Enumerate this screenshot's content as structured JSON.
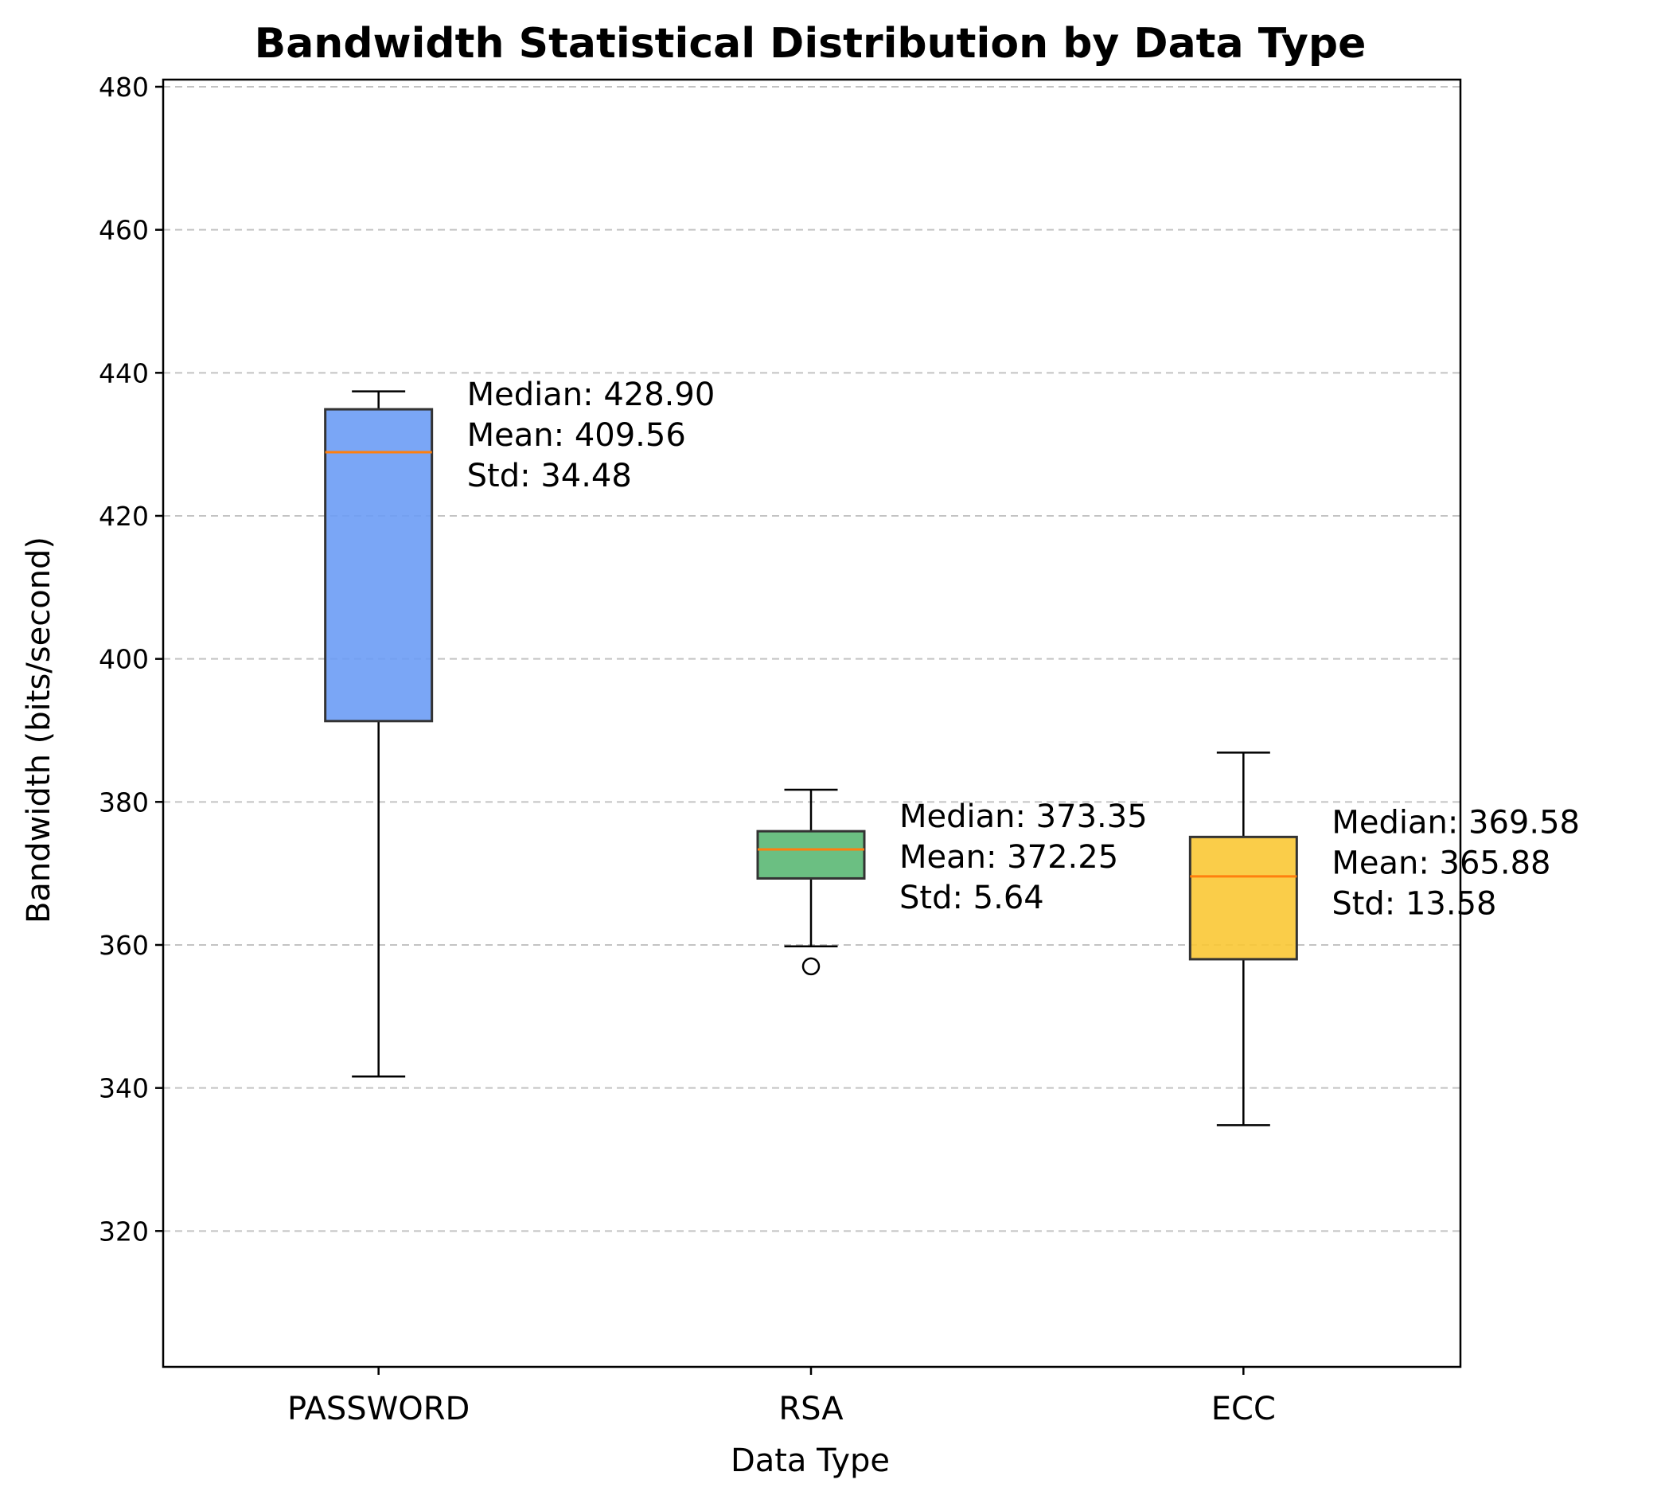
{
  "chart_data": {
    "type": "box",
    "title": "Bandwidth Statistical Distribution by Data Type",
    "xlabel": "Data Type",
    "ylabel": "Bandwidth (bits/second)",
    "ylim": [
      301,
      481
    ],
    "yticks": [
      320,
      340,
      360,
      380,
      400,
      420,
      440,
      460,
      480
    ],
    "grid": "y, dashed",
    "categories": [
      "PASSWORD",
      "RSA",
      "ECC"
    ],
    "boxes": [
      {
        "category": "PASSWORD",
        "color": "#6b9cf5",
        "whisker_low": 341.6,
        "q1": 391.3,
        "median": 428.9,
        "q3": 434.9,
        "whisker_high": 437.4,
        "outliers": [],
        "annotation": [
          "Median: 428.90",
          "Mean: 409.56",
          "Std: 34.48"
        ]
      },
      {
        "category": "RSA",
        "color": "#5bb874",
        "whisker_low": 359.8,
        "q1": 369.3,
        "median": 373.35,
        "q3": 375.9,
        "whisker_high": 381.7,
        "outliers": [
          357.0
        ],
        "annotation": [
          "Median: 373.35",
          "Mean: 372.25",
          "Std: 5.64"
        ]
      },
      {
        "category": "ECC",
        "color": "#f9c835",
        "whisker_low": 334.8,
        "q1": 358.0,
        "median": 369.58,
        "q3": 375.1,
        "whisker_high": 386.9,
        "outliers": [],
        "annotation": [
          "Median: 369.58",
          "Mean: 365.88",
          "Std: 13.58"
        ]
      }
    ],
    "median_color": "#ff7f0e",
    "box_edge_color": "#333333"
  }
}
